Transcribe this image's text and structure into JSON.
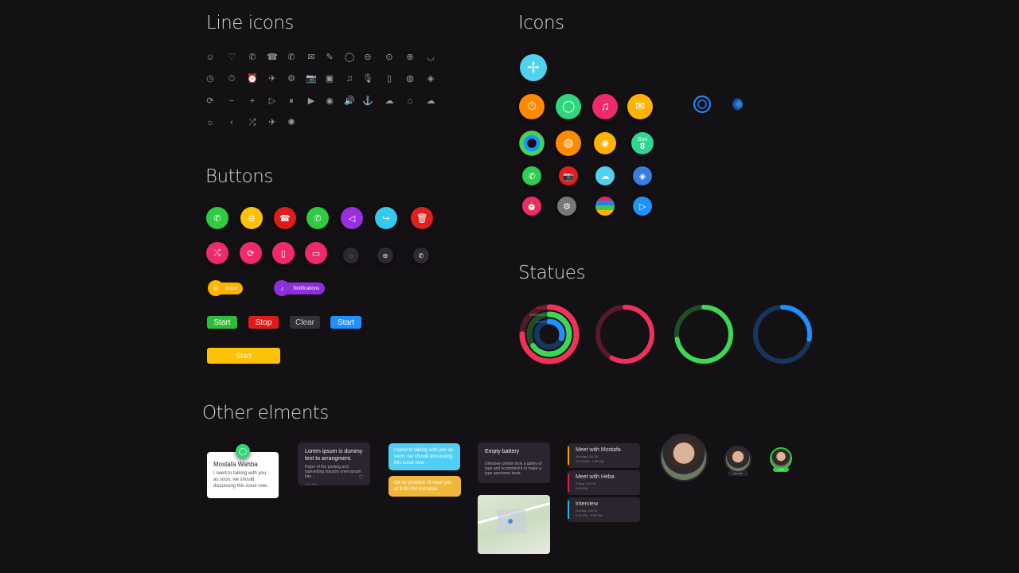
{
  "sections": {
    "line_icons": "Line icons",
    "icons": "Icons",
    "buttons": "Buttons",
    "statues": "Statues",
    "other": "Other elments"
  },
  "line_icons": [
    [
      "☺",
      "♡",
      "✆",
      "☎",
      "✆",
      "✉",
      "✎",
      "◯",
      "⊖",
      "⊙",
      "⊕",
      "◡"
    ],
    [
      "◷",
      "⏱",
      "⏰",
      "✈",
      "⚙",
      "📷",
      "▣",
      "♫",
      "🎙",
      "▯",
      "◍",
      "◈"
    ],
    [
      "⟳",
      "−",
      "+",
      "▷",
      "⏸",
      "▶",
      "◉",
      "🔊",
      "⚓",
      "☁",
      "⌂",
      "☁"
    ],
    [
      "☼",
      "‹",
      "⤮",
      "✈",
      "✺"
    ]
  ],
  "round_buttons": [
    {
      "icon": "phone-icon",
      "glyph": "✆",
      "color": "#2ecc40"
    },
    {
      "icon": "minus-icon",
      "glyph": "⊖",
      "color": "#ffc107"
    },
    {
      "icon": "hang-up-icon",
      "glyph": "☎",
      "color": "#e01b1b"
    },
    {
      "icon": "phone-icon",
      "glyph": "✆",
      "color": "#2ecc40"
    },
    {
      "icon": "speaker-icon",
      "glyph": "◁",
      "color": "#9b2ee0"
    },
    {
      "icon": "share-icon",
      "glyph": "↪",
      "color": "#35c8f0"
    },
    {
      "icon": "trash-icon",
      "glyph": "🗑",
      "color": "#e02020"
    },
    {
      "icon": "shuffle-icon",
      "glyph": "⤮",
      "color": "#ee2a6b"
    },
    {
      "icon": "refresh-icon",
      "glyph": "⟳",
      "color": "#ee2a6b"
    },
    {
      "icon": "phone-device-icon",
      "glyph": "▯",
      "color": "#ee2a6b"
    },
    {
      "icon": "cast-icon",
      "glyph": "▭",
      "color": "#ee2a6b"
    },
    {
      "icon": "chat-icon",
      "glyph": "◌",
      "color": "#2e2a33"
    },
    {
      "icon": "minus-icon",
      "glyph": "⊖",
      "color": "#2e2a33"
    },
    {
      "icon": "phone-icon",
      "glyph": "✆",
      "color": "#2e2a33"
    }
  ],
  "pills": [
    {
      "label": "Inbox",
      "color": "#ffb300"
    },
    {
      "label": "Notifications",
      "color": "#8e2ee0"
    }
  ],
  "buttons": [
    {
      "label": "Start",
      "color": "#2ebd3a"
    },
    {
      "label": "Stop",
      "color": "#e01b1b"
    },
    {
      "label": "Clear",
      "color": "#34303a"
    },
    {
      "label": "Start",
      "color": "#1e90ff"
    }
  ],
  "big_button": {
    "label": "Start",
    "color": "#ffc107"
  },
  "app_icons": [
    {
      "name": "timer-icon",
      "glyph": "⏱",
      "color": "#ff8a00"
    },
    {
      "name": "messages-icon",
      "glyph": "◯",
      "color": "#2ed67c"
    },
    {
      "name": "music-icon",
      "glyph": "♫",
      "color": "#ee2a6b"
    },
    {
      "name": "mail-icon",
      "glyph": "✉",
      "color": "#ffb300"
    },
    {
      "name": "activity-icon",
      "glyph": "",
      "color": "#e0285a"
    },
    {
      "name": "world-clock-icon",
      "glyph": "◍",
      "color": "#ff8a00"
    },
    {
      "name": "photos-icon",
      "glyph": "✺",
      "color": "#ffb300"
    },
    {
      "name": "calendar-icon",
      "glyph": "",
      "color": "#2ed690"
    },
    {
      "name": "phone-icon",
      "glyph": "✆",
      "color": "#2ecc50"
    },
    {
      "name": "camera-icon",
      "glyph": "📷",
      "color": "#e51c1c"
    },
    {
      "name": "weather-icon",
      "glyph": "☁",
      "color": "#4fd2f0"
    },
    {
      "name": "maps-icon",
      "glyph": "◈",
      "color": "#3a7de0"
    },
    {
      "name": "alarm-icon",
      "glyph": "⏰",
      "color": "#ee2a6b"
    },
    {
      "name": "settings-icon",
      "glyph": "⚙",
      "color": "#777"
    },
    {
      "name": "stocks-icon",
      "glyph": "",
      "color": "#2e7de0"
    },
    {
      "name": "play-icon",
      "glyph": "▷",
      "color": "#1e90ff"
    }
  ],
  "calendar_icon": {
    "day": "Sun",
    "date": "8"
  },
  "rings": {
    "labels": [
      "MOVE",
      "EXERCISE",
      "STAND"
    ],
    "charts": [
      {
        "color": "#f0325a",
        "progress": 0.75
      },
      {
        "color": "#f0325a",
        "progress": 0.58
      },
      {
        "color": "#3ed655",
        "progress": 0.72
      },
      {
        "color": "#1e90ff",
        "progress": 0.28
      }
    ]
  },
  "notification": {
    "name": "Mostafa Wahba",
    "message": "I need to talking with you as soon, we should discussing this issue now ."
  },
  "dark_card": {
    "title": "Lorem ipsum is dummy text to arrangment.",
    "body": "Paper of the printing and typesetting industry orem ipsum has ..",
    "time": "7:20 PM"
  },
  "chat": {
    "incoming": "I need to talking with you as soon, we should discussing this issue now .",
    "outgoing": "Ok no problem i'll meet you at 9:30 PM inshallah."
  },
  "battery": {
    "title": "Empty battery",
    "body": "Unknown printer took a galley of type and scrambled it to make a type specimen book."
  },
  "events": [
    {
      "title": "Meet with Mostafa",
      "date": "Monday, Oct 05",
      "time": "10:00 AM - 1:00 PM",
      "color": "#ff9800"
    },
    {
      "title": "Meet with Heba",
      "date": "Friday, Oct 05",
      "time": "6:00 PM",
      "color": "#e0204a"
    },
    {
      "title": "Interview",
      "date": "Sunday, Oct 21",
      "time": "5:00 PM - 9:00 PM",
      "color": "#35b0e8"
    }
  ],
  "avatars": {
    "medium_label": "Mostafa",
    "small_label": "Online",
    "online_color": "#2ecc40"
  }
}
